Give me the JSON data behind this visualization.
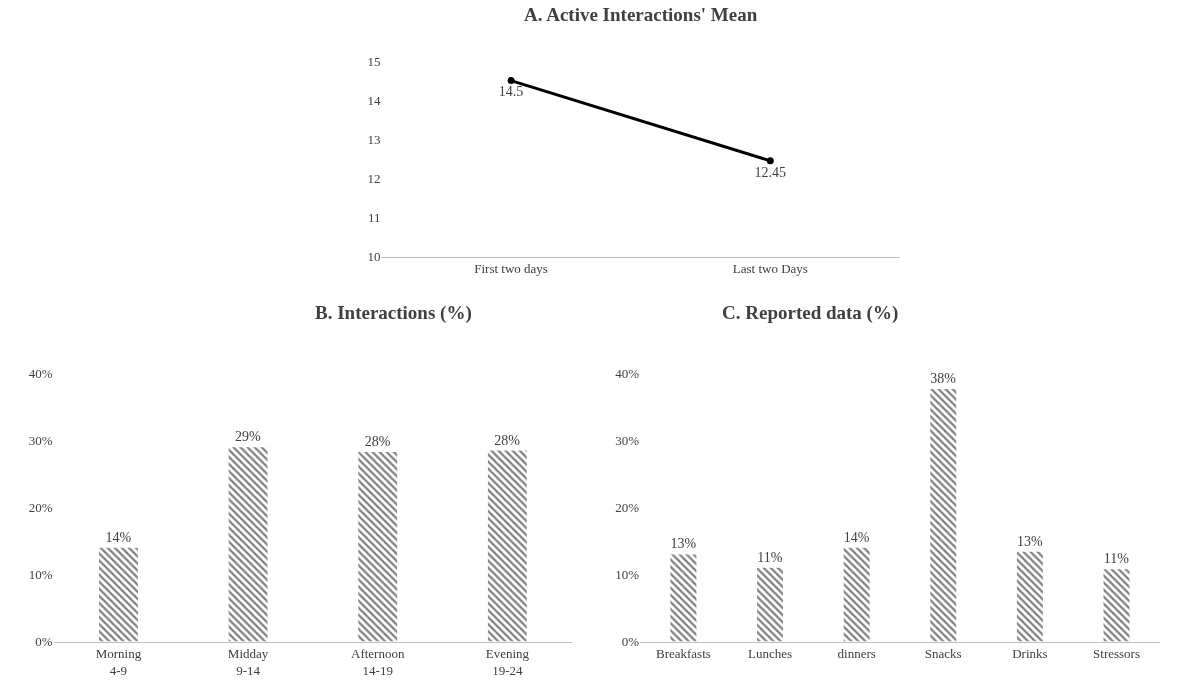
{
  "chart_data": [
    {
      "type": "line",
      "title": "A. Active Interactions' Mean",
      "categories": [
        "First two days",
        "Last two Days"
      ],
      "series": [
        {
          "color": "#000000",
          "values": [
            14.5,
            12.45
          ]
        }
      ],
      "ylim": [
        10,
        15
      ],
      "yticks": [
        10,
        11,
        12,
        13,
        14,
        15
      ],
      "data_labels": true,
      "marker": "circle",
      "grid": false
    },
    {
      "type": "bar",
      "title": "B. Interactions (%)",
      "categories": [
        "Morning\n4-9",
        "Midday\n9-14",
        "Afternoon\n14-19",
        "Evening\n19-24"
      ],
      "series": [
        {
          "color": "#000000",
          "values": [
            14,
            29,
            28.3,
            28.5
          ],
          "value_labels": [
            "14%",
            "29%",
            "28%",
            "28%"
          ]
        }
      ],
      "ylim": [
        0,
        40
      ],
      "yticks": [
        {
          "value": 0,
          "label": "0%"
        },
        {
          "value": 10,
          "label": "10%"
        },
        {
          "value": 20,
          "label": "20%"
        },
        {
          "value": 30,
          "label": "30%"
        },
        {
          "value": 40,
          "label": "40%"
        }
      ],
      "grid": false
    },
    {
      "type": "bar",
      "title": "C. Reported data (%)",
      "categories": [
        "Breakfasts",
        "Lunches",
        "dinners",
        "Snacks",
        "Drinks",
        "Stressors"
      ],
      "series": [
        {
          "color": "#000000",
          "values": [
            13,
            11,
            14,
            37.7,
            13.4,
            10.8
          ],
          "value_labels": [
            "13%",
            "11%",
            "14%",
            "38%",
            "13%",
            "11%"
          ]
        }
      ],
      "ylim": [
        0,
        40
      ],
      "yticks": [
        {
          "value": 0,
          "label": "0%"
        },
        {
          "value": 10,
          "label": "10%"
        },
        {
          "value": 20,
          "label": "20%"
        },
        {
          "value": 30,
          "label": "30%"
        },
        {
          "value": 40,
          "label": "40%"
        }
      ],
      "grid": false
    }
  ]
}
